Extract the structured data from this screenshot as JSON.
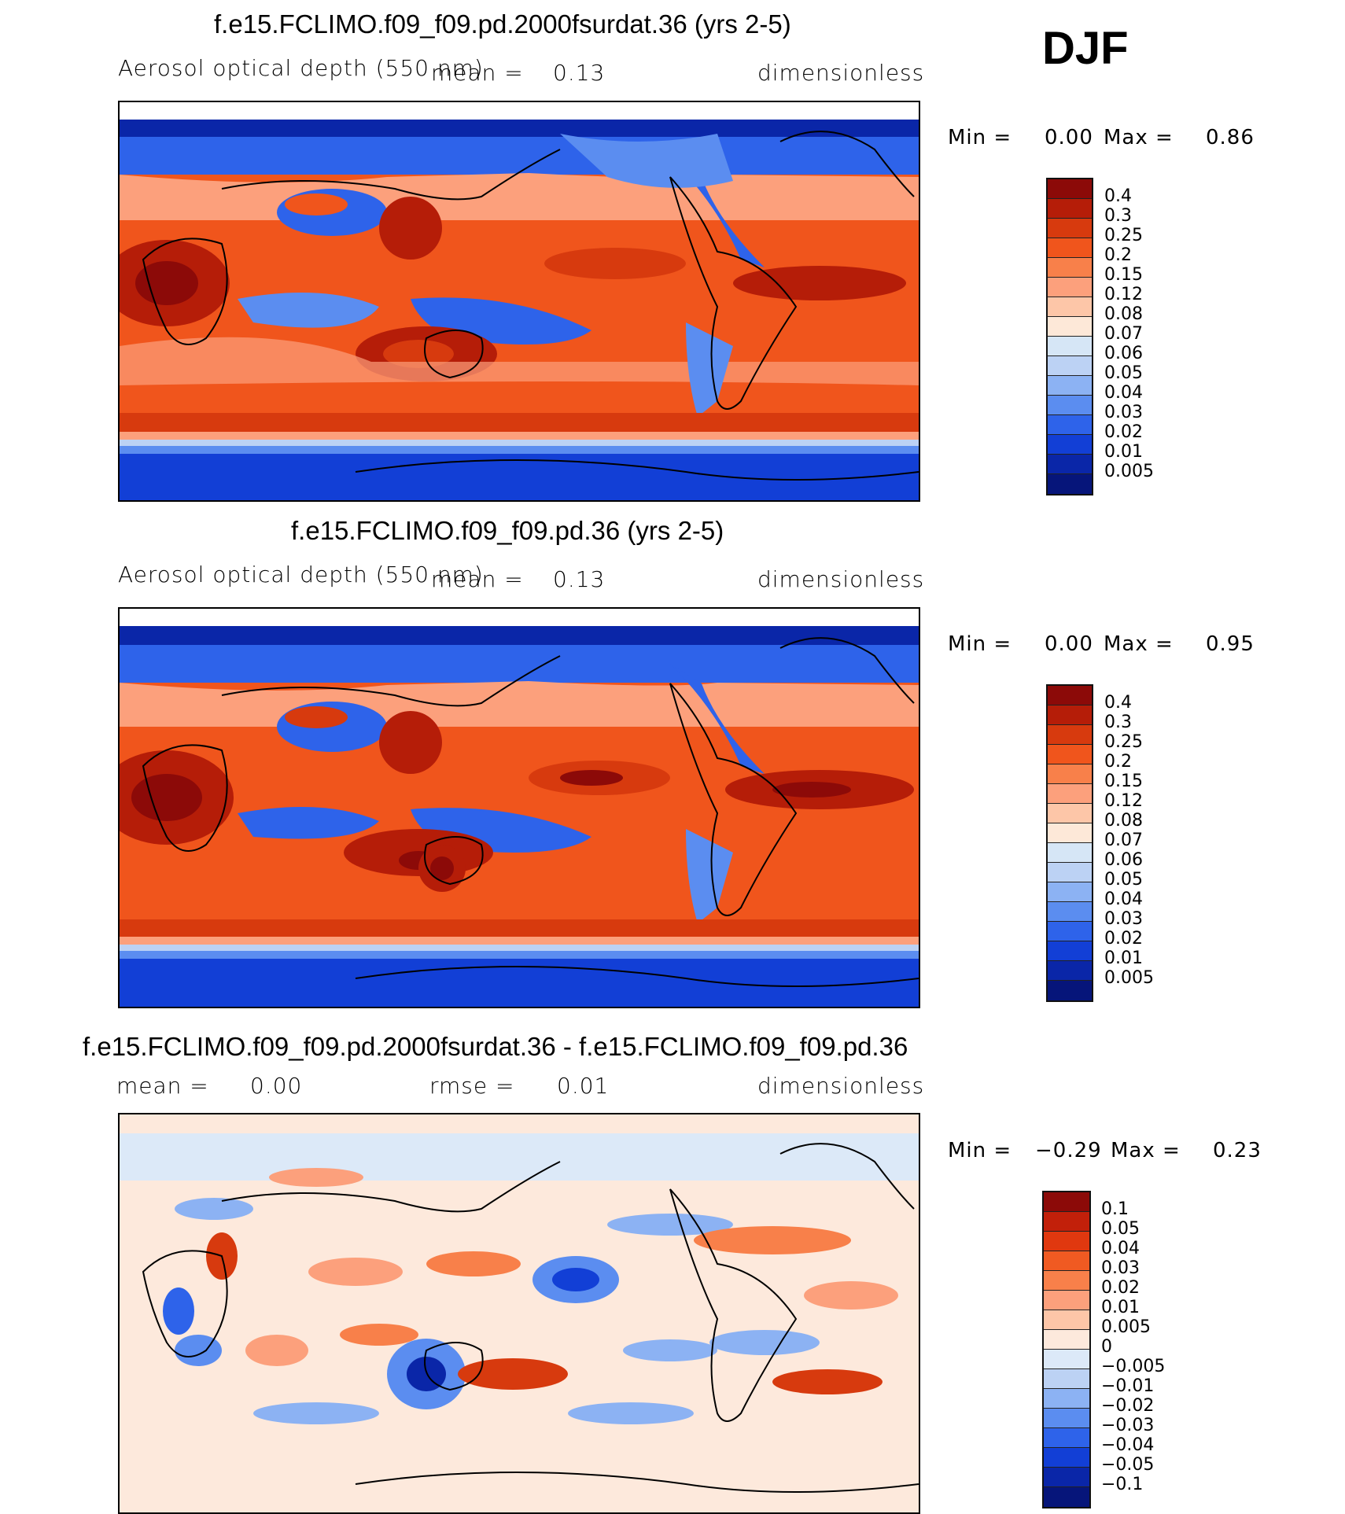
{
  "season": "DJF",
  "panels": [
    {
      "title": "f.e15.FCLIMO.f09_f09.pd.2000fsurdat.36 (yrs 2-5)",
      "variable": "Aerosol optical depth (550 nm)",
      "mean_label": "mean =",
      "mean_value": "0.13",
      "units": "dimensionless",
      "min_label": "Min =",
      "min_value": "0.00",
      "max_label": "Max =",
      "max_value": "0.86",
      "map_description": "Global AOD field, high over Sahara/Atlantic and Australia, low at high latitudes",
      "colorbar": {
        "colors": [
          "#8c0a08",
          "#b51d08",
          "#d73a0e",
          "#f0551c",
          "#f8804a",
          "#fca07c",
          "#fdc6a8",
          "#fde8d8",
          "#d6e6f6",
          "#bcd2f4",
          "#8cb2f3",
          "#5b8df0",
          "#2e63ea",
          "#123fd6",
          "#0a26a8",
          "#06157a"
        ],
        "labels": [
          "0.4",
          "0.3",
          "0.25",
          "0.2",
          "0.15",
          "0.12",
          "0.08",
          "0.07",
          "0.06",
          "0.05",
          "0.04",
          "0.03",
          "0.02",
          "0.01",
          "0.005"
        ]
      }
    },
    {
      "title": "f.e15.FCLIMO.f09_f09.pd.36 (yrs 2-5)",
      "variable": "Aerosol optical depth (550 nm)",
      "mean_label": "mean =",
      "mean_value": "0.13",
      "units": "dimensionless",
      "min_label": "Min =",
      "min_value": "0.00",
      "max_label": "Max =",
      "max_value": "0.95",
      "map_description": "Global AOD field for control run",
      "colorbar": {
        "colors": [
          "#8c0a08",
          "#b51d08",
          "#d73a0e",
          "#f0551c",
          "#f8804a",
          "#fca07c",
          "#fdc6a8",
          "#fde8d8",
          "#d6e6f6",
          "#bcd2f4",
          "#8cb2f3",
          "#5b8df0",
          "#2e63ea",
          "#123fd6",
          "#0a26a8",
          "#06157a"
        ],
        "labels": [
          "0.4",
          "0.3",
          "0.25",
          "0.2",
          "0.15",
          "0.12",
          "0.08",
          "0.07",
          "0.06",
          "0.05",
          "0.04",
          "0.03",
          "0.02",
          "0.01",
          "0.005"
        ]
      }
    },
    {
      "title": "f.e15.FCLIMO.f09_f09.pd.2000fsurdat.36 - f.e15.FCLIMO.f09_f09.pd.36",
      "mean_label": "mean =",
      "mean_value": "0.00",
      "rmse_label": "rmse =",
      "rmse_value": "0.01",
      "units": "dimensionless",
      "min_label": "Min =",
      "min_value": "−0.29",
      "max_label": "Max =",
      "max_value": "0.23",
      "map_description": "Difference field, mostly near zero with patches of positive and negative",
      "colorbar": {
        "colors": [
          "#8c0a08",
          "#c2200a",
          "#e0380f",
          "#f05a22",
          "#f8804a",
          "#fca07c",
          "#fdc6a8",
          "#fde9dc",
          "#dce9f8",
          "#bcd2f4",
          "#8cb2f3",
          "#5b8df0",
          "#2e63ea",
          "#123fd6",
          "#0a26a8",
          "#06157a"
        ],
        "labels": [
          "0.1",
          "0.05",
          "0.04",
          "0.03",
          "0.02",
          "0.01",
          "0.005",
          "0",
          "−0.005",
          "−0.01",
          "−0.02",
          "−0.03",
          "−0.04",
          "−0.05",
          "−0.1"
        ]
      }
    }
  ]
}
